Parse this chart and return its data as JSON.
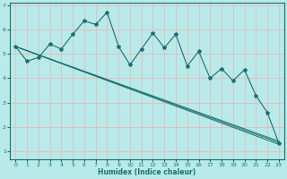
{
  "xlabel": "Humidex (Indice chaleur)",
  "background_color": "#b8eaea",
  "grid_color": "#e8b8b8",
  "line_color": "#1a7070",
  "xlim": [
    -0.5,
    23.5
  ],
  "ylim": [
    0.7,
    7.1
  ],
  "xticks": [
    0,
    1,
    2,
    3,
    4,
    5,
    6,
    7,
    8,
    9,
    10,
    11,
    12,
    13,
    14,
    15,
    16,
    17,
    18,
    19,
    20,
    21,
    22,
    23
  ],
  "yticks": [
    1,
    2,
    3,
    4,
    5,
    6,
    7
  ],
  "jagged_x": [
    0,
    1,
    2,
    3,
    4,
    5,
    6,
    7,
    8,
    9,
    10,
    11,
    12,
    13,
    14,
    15,
    16,
    17,
    18,
    19,
    20,
    21,
    22,
    23
  ],
  "jagged_y": [
    5.3,
    4.7,
    4.85,
    5.4,
    5.2,
    5.8,
    6.35,
    6.2,
    6.7,
    5.3,
    4.55,
    5.2,
    5.85,
    5.25,
    5.8,
    4.5,
    5.1,
    4.0,
    4.4,
    3.9,
    4.35,
    3.3,
    2.6,
    1.35
  ],
  "smooth_lines": [
    {
      "x": [
        0,
        23
      ],
      "y": [
        5.3,
        1.3
      ]
    },
    {
      "x": [
        0,
        23
      ],
      "y": [
        5.3,
        1.37
      ]
    },
    {
      "x": [
        0,
        23
      ],
      "y": [
        5.3,
        1.43
      ]
    }
  ]
}
